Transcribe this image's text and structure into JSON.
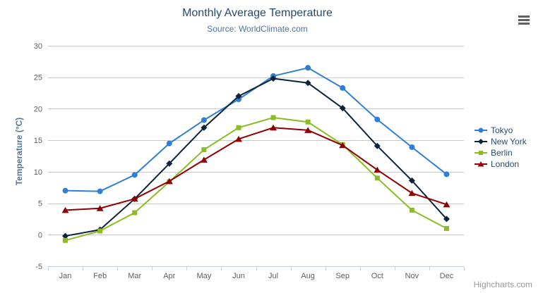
{
  "header": {
    "title": "Monthly Average Temperature",
    "subtitle": "Source: WorldClimate.com"
  },
  "icons": {
    "context_menu": "hamburger-icon"
  },
  "credits": {
    "label": "Highcharts.com"
  },
  "chart_data": {
    "type": "line",
    "title": "Monthly Average Temperature",
    "subtitle": "Source: WorldClimate.com",
    "categories": [
      "Jan",
      "Feb",
      "Mar",
      "Apr",
      "May",
      "Jun",
      "Jul",
      "Aug",
      "Sep",
      "Oct",
      "Nov",
      "Dec"
    ],
    "xlabel": "",
    "ylabel": "Temperature (°C)",
    "ylim": [
      -5,
      30
    ],
    "ytick_interval": 5,
    "grid": true,
    "legend_position": "right",
    "series": [
      {
        "name": "Tokyo",
        "color": "#2f7ed8",
        "marker": "circle",
        "values": [
          7.0,
          6.9,
          9.5,
          14.5,
          18.2,
          21.5,
          25.2,
          26.5,
          23.3,
          18.3,
          13.9,
          9.6
        ]
      },
      {
        "name": "New York",
        "color": "#0d233a",
        "marker": "diamond",
        "values": [
          -0.2,
          0.8,
          5.7,
          11.3,
          17.0,
          22.0,
          24.8,
          24.1,
          20.1,
          14.1,
          8.6,
          2.5
        ]
      },
      {
        "name": "Berlin",
        "color": "#8bbc21",
        "marker": "square",
        "values": [
          -0.9,
          0.6,
          3.5,
          8.4,
          13.5,
          17.0,
          18.6,
          17.9,
          14.3,
          9.0,
          3.9,
          1.0
        ]
      },
      {
        "name": "London",
        "color": "#910000",
        "marker": "triangle",
        "values": [
          3.9,
          4.2,
          5.7,
          8.5,
          11.9,
          15.2,
          17.0,
          16.6,
          14.2,
          10.3,
          6.6,
          4.8
        ]
      }
    ]
  }
}
